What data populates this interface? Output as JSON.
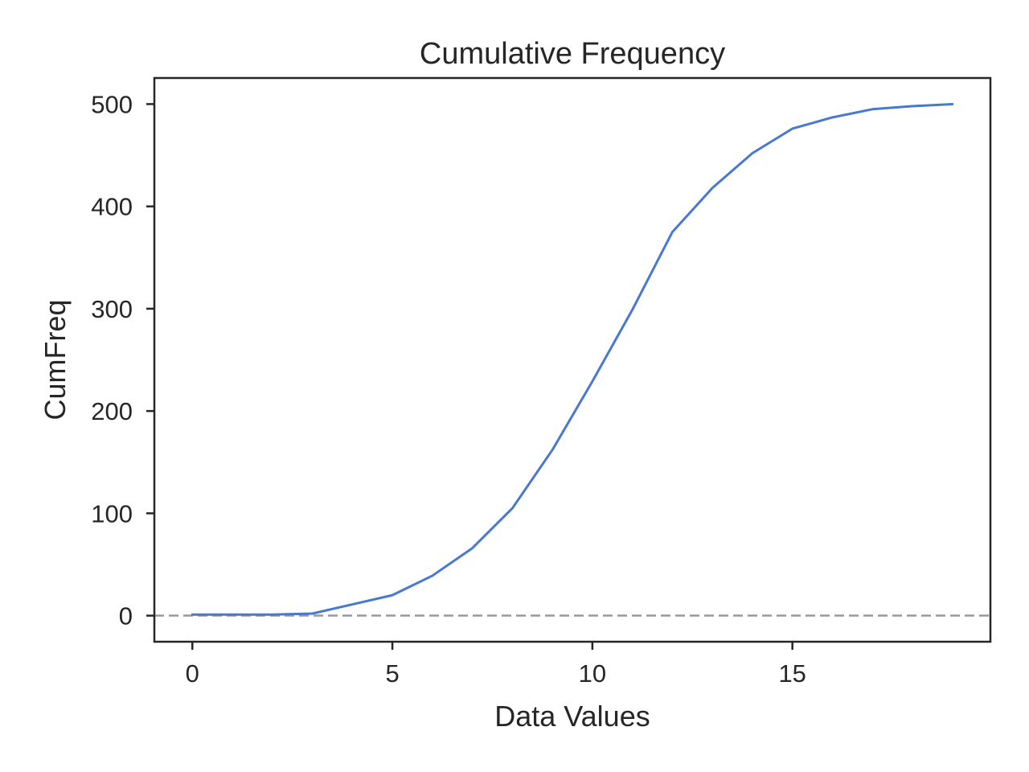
{
  "chart_data": {
    "type": "line",
    "title": "Cumulative Frequency",
    "xlabel": "Data Values",
    "ylabel": "CumFreq",
    "xlim": [
      -0.95,
      19.95
    ],
    "ylim": [
      -25.5,
      525.5
    ],
    "xticks": [
      0,
      5,
      10,
      15
    ],
    "yticks": [
      0,
      100,
      200,
      300,
      400,
      500
    ],
    "grid": false,
    "legend": "none",
    "series": [
      {
        "color": "#4878cf",
        "x": [
          0,
          1,
          2,
          3,
          4,
          5,
          6,
          7,
          8,
          9,
          10,
          11,
          12,
          13,
          14,
          15,
          16,
          17,
          18,
          19
        ],
        "y": [
          1,
          1,
          1,
          2,
          11,
          20,
          39,
          66,
          105,
          162,
          229,
          299,
          375,
          418,
          452,
          476,
          487,
          495,
          498,
          500
        ]
      }
    ],
    "reference_line": {
      "y": 0,
      "color": "#999999",
      "style": "dashed"
    }
  }
}
